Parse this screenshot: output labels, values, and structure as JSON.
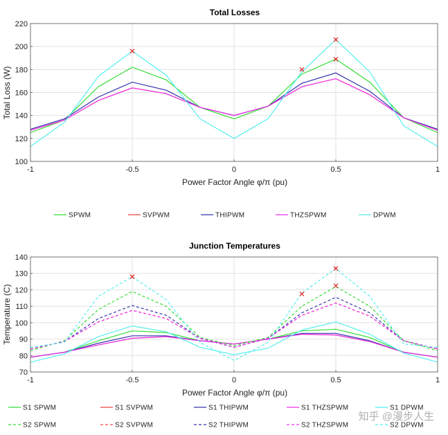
{
  "watermark": "知乎 @漫步人生",
  "chart_data": [
    {
      "type": "line",
      "title": "Total Losses",
      "xlabel": "Power Factor Angle φ/π (pu)",
      "ylabel": "Total Loss (W)",
      "xlim": [
        -1,
        1
      ],
      "ylim": [
        100,
        220
      ],
      "xticks": [
        -1,
        -0.5,
        0,
        0.5,
        1
      ],
      "xtick_labels": [
        "-1",
        "-0.5",
        "0",
        "0.5",
        "1"
      ],
      "yticks": [
        100,
        120,
        140,
        160,
        180,
        200,
        220
      ],
      "grid": true,
      "x": [
        -1,
        -0.8333,
        -0.6667,
        -0.5,
        -0.3333,
        -0.1667,
        0,
        0.1667,
        0.3333,
        0.5,
        0.6667,
        0.8333,
        1
      ],
      "series": [
        {
          "name": "SPWM",
          "color": "#33dd33",
          "dash": false,
          "values": [
            125,
            136,
            165,
            182,
            171,
            147,
            137,
            148,
            176,
            189,
            169,
            138,
            125
          ]
        },
        {
          "name": "SVPWM",
          "color": "#ee4444",
          "dash": false,
          "values": [
            127,
            136,
            153,
            164,
            159,
            147,
            140,
            148,
            165,
            172,
            158,
            138,
            127
          ]
        },
        {
          "name": "THIPWM",
          "color": "#3333aa",
          "dash": false,
          "values": [
            128,
            137,
            156,
            169,
            162,
            147,
            140,
            148,
            168,
            177,
            161,
            138,
            128
          ]
        },
        {
          "name": "THZSPWM",
          "color": "#ee33ee",
          "dash": false,
          "values": [
            127,
            136,
            153,
            164,
            159,
            147,
            140,
            148,
            165,
            172,
            158,
            138,
            127
          ]
        },
        {
          "name": "DPWM",
          "color": "#55eeee",
          "dash": false,
          "values": [
            113,
            134,
            174,
            196,
            175,
            137,
            120,
            137,
            178,
            206,
            178,
            131,
            113
          ]
        }
      ],
      "markers": [
        {
          "x": -0.5,
          "y": 196
        },
        {
          "x": 0.3333,
          "y": 180
        },
        {
          "x": 0.5,
          "y": 189
        },
        {
          "x": 0.5,
          "y": 206
        }
      ],
      "legend": {
        "placement": "below",
        "entries": [
          "SPWM",
          "SVPWM",
          "THIPWM",
          "THZSPWM",
          "DPWM"
        ]
      }
    },
    {
      "type": "line",
      "title": "Junction Temperatures",
      "xlabel": "Power Factor Angle φ/π (pu)",
      "ylabel": "Temperature (C)",
      "xlim": [
        -1,
        1
      ],
      "ylim": [
        70,
        140
      ],
      "xticks": [
        -1,
        -0.5,
        0,
        0.5,
        1
      ],
      "xtick_labels": [
        "-1",
        "-0.5",
        "0",
        "0.5",
        "1"
      ],
      "yticks": [
        70,
        80,
        90,
        100,
        110,
        120,
        130,
        140
      ],
      "grid": true,
      "x": [
        -1,
        -0.8333,
        -0.6667,
        -0.5,
        -0.3333,
        -0.1667,
        0,
        0.1667,
        0.3333,
        0.5,
        0.6667,
        0.8333,
        1
      ],
      "series": [
        {
          "name": "S1 SPWM",
          "color": "#33dd33",
          "dash": false,
          "values": [
            79,
            82,
            89,
            95,
            94,
            89,
            87,
            90,
            95,
            96,
            91,
            82,
            79
          ]
        },
        {
          "name": "S1 SVPWM",
          "color": "#ee4444",
          "dash": false,
          "values": [
            79,
            82,
            86.5,
            90.5,
            91.5,
            89,
            87,
            90,
            93,
            92.5,
            88.5,
            82,
            79
          ]
        },
        {
          "name": "S1 THIPWM",
          "color": "#3333aa",
          "dash": false,
          "values": [
            79,
            82,
            87.5,
            92,
            92,
            89,
            87,
            90,
            93.5,
            93.5,
            89,
            82,
            79
          ]
        },
        {
          "name": "S1 THZSPWM",
          "color": "#ee33ee",
          "dash": false,
          "values": [
            79,
            82,
            86.5,
            90.5,
            91.5,
            89,
            87,
            90,
            93,
            92.5,
            88.5,
            82,
            79
          ]
        },
        {
          "name": "S1 DPWM",
          "color": "#55eeee",
          "dash": false,
          "values": [
            76,
            81,
            91.5,
            98,
            94.5,
            85,
            80.5,
            84.5,
            95.5,
            100.5,
            93,
            81.5,
            76
          ]
        },
        {
          "name": "S2 SPWM",
          "color": "#33dd33",
          "dash": true,
          "values": [
            83,
            89,
            108,
            119,
            110,
            91,
            86,
            91,
            110,
            122,
            110,
            89,
            83
          ]
        },
        {
          "name": "S2 SVPWM",
          "color": "#ee4444",
          "dash": true,
          "values": [
            84,
            88.5,
            100.5,
            107.5,
            102.5,
            90.5,
            85,
            90.5,
            104.5,
            112,
            104,
            89,
            84
          ]
        },
        {
          "name": "S2 THIPWM",
          "color": "#3333aa",
          "dash": true,
          "values": [
            84,
            88.5,
            102.5,
            110.5,
            104.5,
            90.5,
            85,
            90.5,
            106,
            115.5,
            106,
            89,
            84
          ]
        },
        {
          "name": "S2 THZSPWM",
          "color": "#ee33ee",
          "dash": true,
          "values": [
            84,
            88.5,
            100.5,
            107.5,
            102.5,
            90.5,
            85,
            90.5,
            104.5,
            112,
            104,
            89,
            84
          ]
        },
        {
          "name": "S2 DPWM",
          "color": "#55eeee",
          "dash": true,
          "values": [
            85,
            88,
            116,
            128,
            114,
            88,
            77,
            88,
            118,
            133,
            116,
            87,
            85
          ]
        }
      ],
      "markers": [
        {
          "x": -0.5,
          "y": 128
        },
        {
          "x": 0.3333,
          "y": 117.5
        },
        {
          "x": 0.5,
          "y": 122.5
        },
        {
          "x": 0.5,
          "y": 133
        }
      ],
      "legend": {
        "placement": "below",
        "entries": [
          "S1 SPWM",
          "S1 SVPWM",
          "S1 THIPWM",
          "S1 THZSPWM",
          "S1 DPWM",
          "S2 SPWM",
          "S2 SVPWM",
          "S2 THIPWM",
          "S2 THZSPWM",
          "S2 DPWM"
        ]
      }
    }
  ]
}
